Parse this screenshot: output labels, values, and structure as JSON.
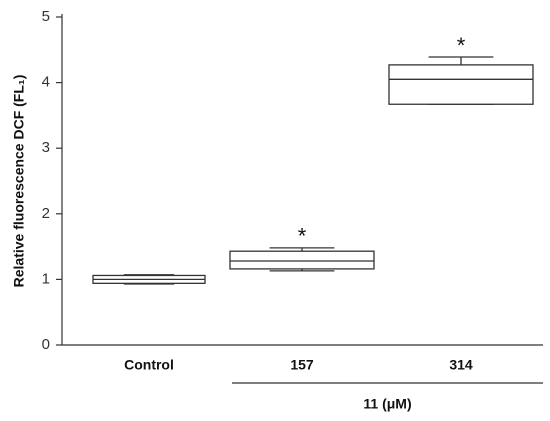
{
  "chart_data": {
    "type": "box",
    "y_label": "Relative fluorescence DCF (FL₁)",
    "categories": [
      "Control",
      "157",
      "314"
    ],
    "boxes": [
      {
        "min": 0.93,
        "q1": 0.94,
        "median": 1.0,
        "q3": 1.06,
        "max": 1.07
      },
      {
        "min": 1.13,
        "q1": 1.16,
        "median": 1.28,
        "q3": 1.43,
        "max": 1.48
      },
      {
        "min": 3.67,
        "q1": 3.67,
        "median": 4.05,
        "q3": 4.27,
        "max": 4.39
      }
    ],
    "group_label": "11 (μM)",
    "group_categories": [
      "157",
      "314"
    ],
    "annotations": [
      {
        "text": "*",
        "category": "157"
      },
      {
        "text": "*",
        "category": "314"
      }
    ],
    "color": "#333333",
    "ylim": [
      0,
      5
    ],
    "yticks": [
      0,
      1,
      2,
      3,
      4,
      5
    ],
    "grid": false
  }
}
